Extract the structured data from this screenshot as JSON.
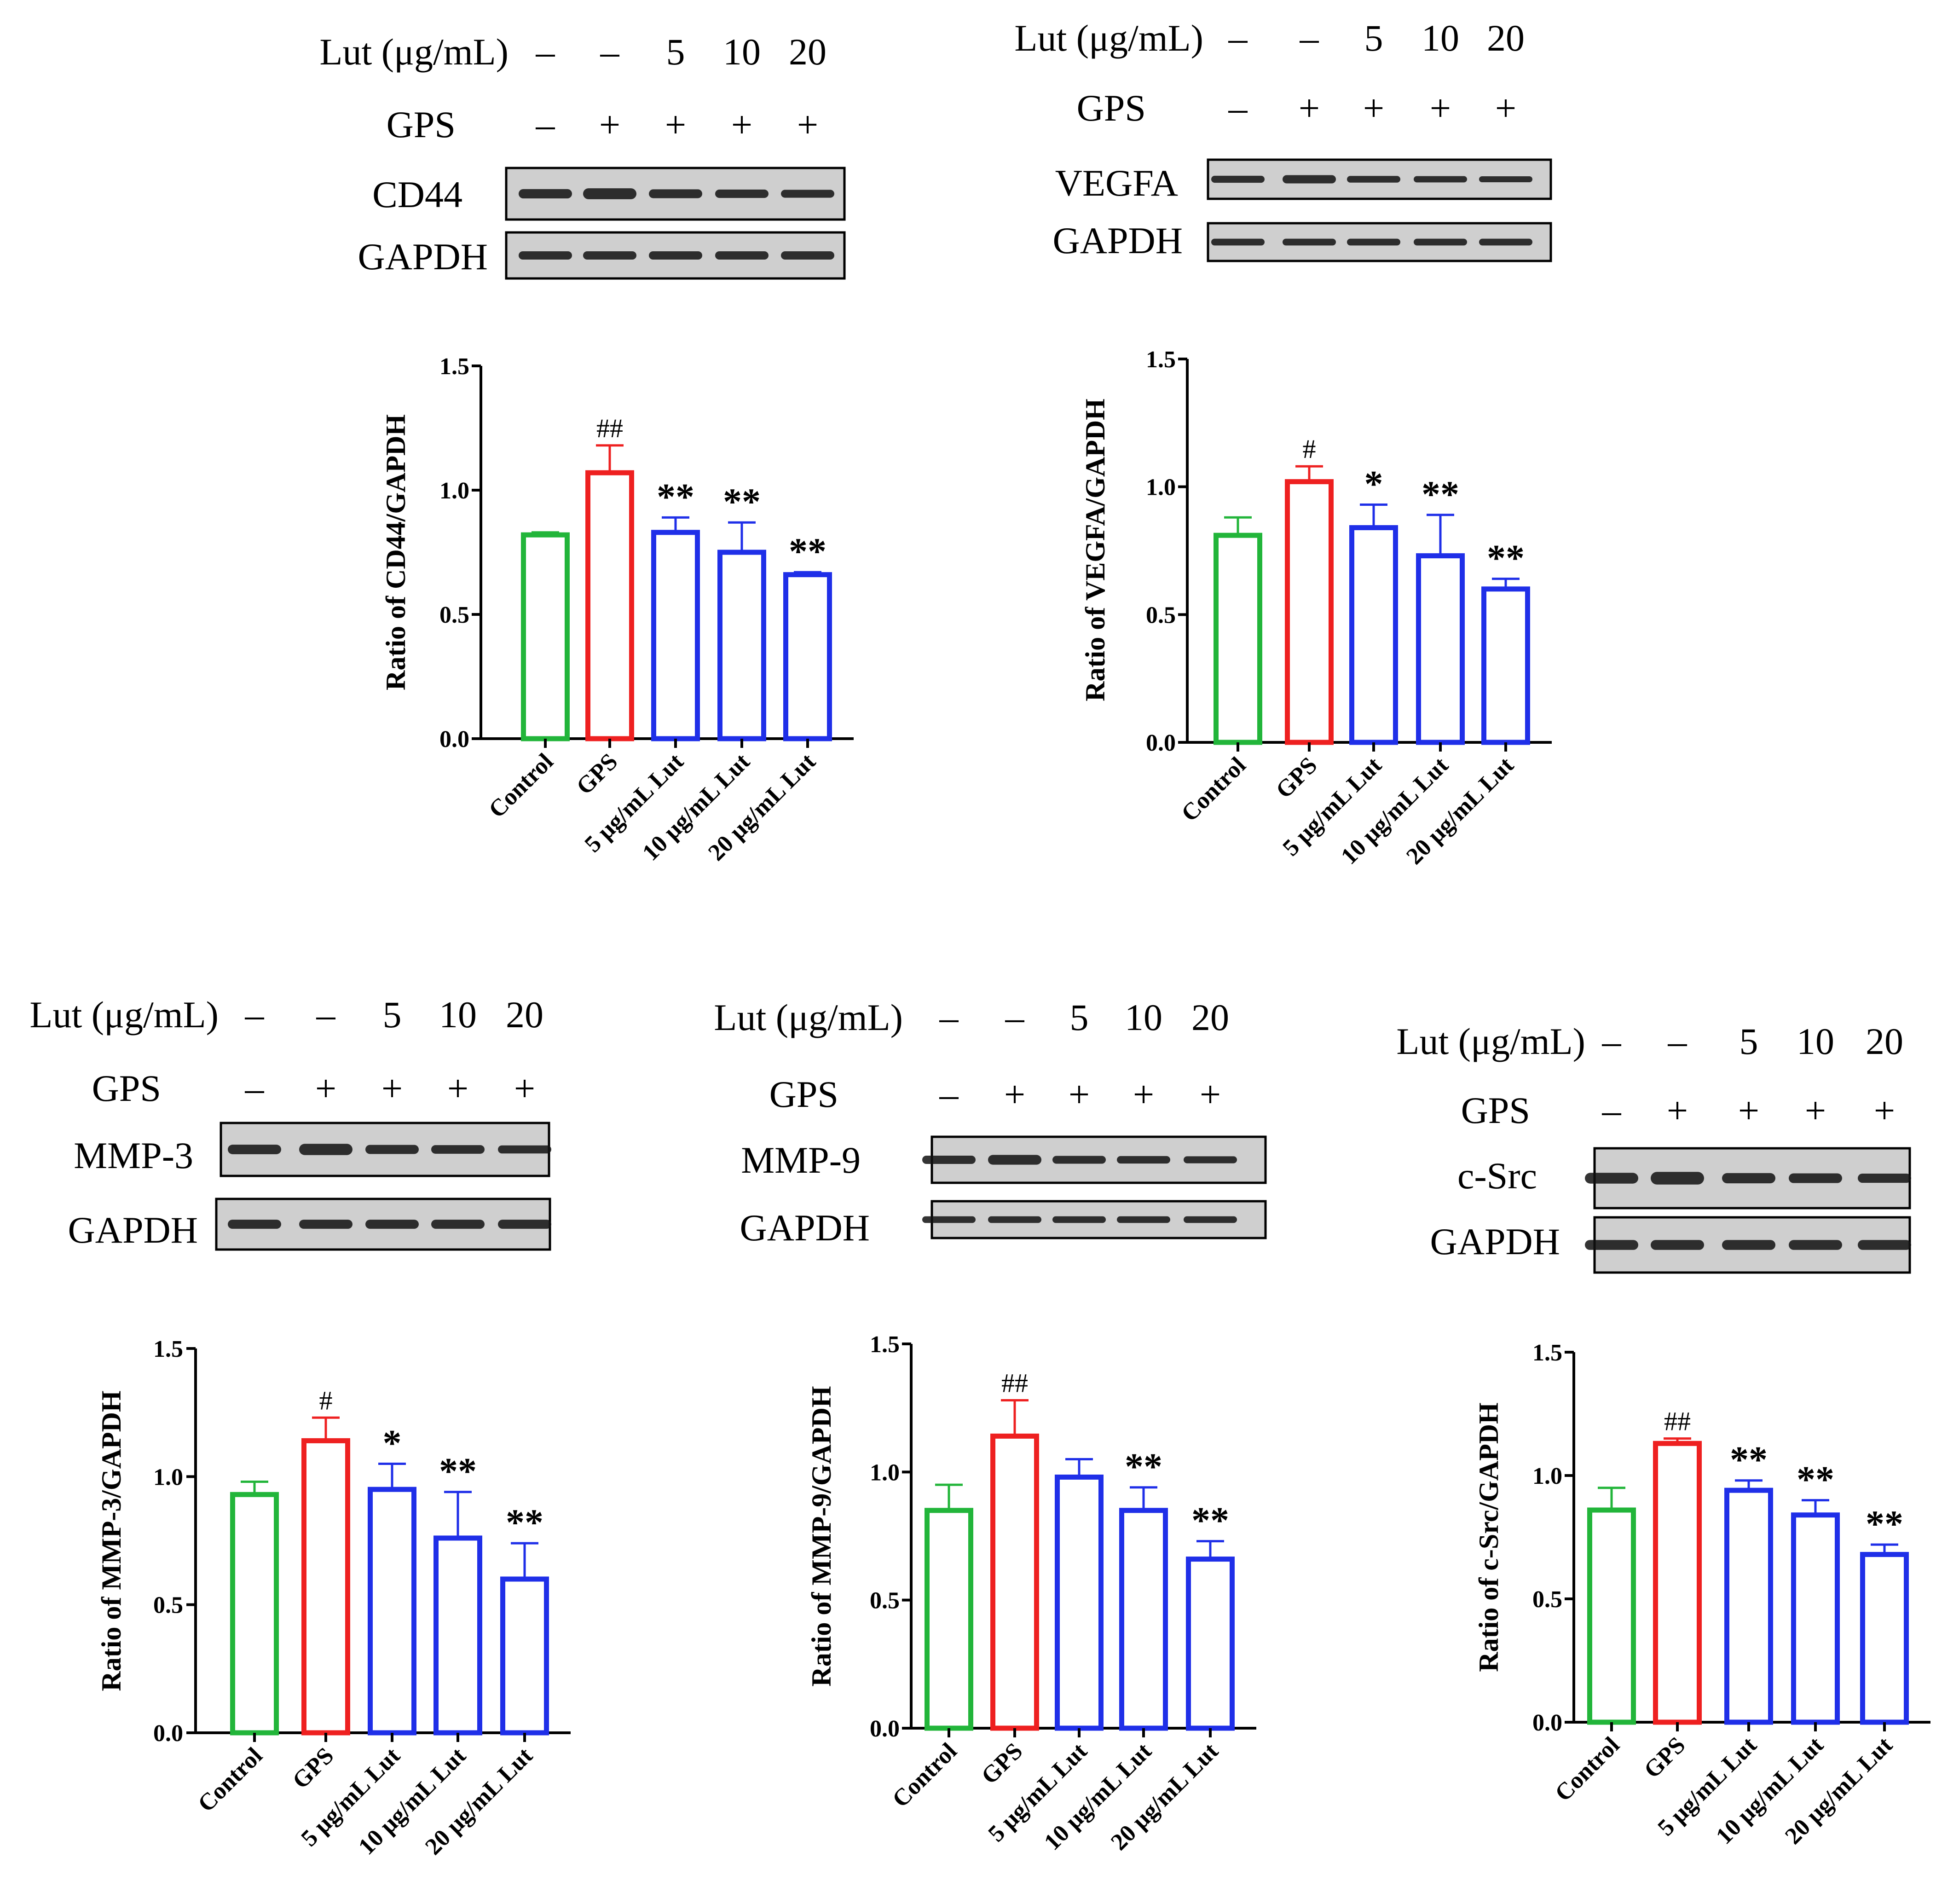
{
  "figure": {
    "label_header_lut": "Lut (μg/mL)",
    "label_header_gps": "GPS",
    "loading_label": "GAPDH",
    "lut_marks": [
      "–",
      "–",
      "5",
      "10",
      "20"
    ],
    "gps_marks": [
      "–",
      "+",
      "+",
      "+",
      "+"
    ],
    "colors": {
      "control": "#22b53a",
      "gps": "#ee2020",
      "lut": "#1f2fe8",
      "axis": "#000000",
      "band": "#111111",
      "blot_bg": "#cfcfcf"
    }
  },
  "panels": [
    {
      "id": "cd44",
      "protein_label": "CD44",
      "y_axis_label": "Ratio of CD44/GAPDH",
      "tick_labels": [
        "0.0",
        "0.5",
        "1.0",
        "1.5"
      ],
      "category_labels": [
        "Control",
        "GPS",
        "5 μg/mL Lut",
        "10 μg/mL Lut",
        "20 μg/mL Lut"
      ],
      "annotations": [
        "",
        "##",
        "**",
        "**",
        "**"
      ]
    },
    {
      "id": "vegfa",
      "protein_label": "VEGFA",
      "y_axis_label": "Ratio of VEGFA/GAPDH",
      "tick_labels": [
        "0.0",
        "0.5",
        "1.0",
        "1.5"
      ],
      "category_labels": [
        "Control",
        "GPS",
        "5 μg/mL Lut",
        "10 μg/mL Lut",
        "20 μg/mL Lut"
      ],
      "annotations": [
        "",
        "#",
        "*",
        "**",
        "**"
      ]
    },
    {
      "id": "mmp3",
      "protein_label": "MMP-3",
      "y_axis_label": "Ratio of MMP-3/GAPDH",
      "tick_labels": [
        "0.0",
        "0.5",
        "1.0",
        "1.5"
      ],
      "category_labels": [
        "Control",
        "GPS",
        "5 μg/mL Lut",
        "10 μg/mL Lut",
        "20 μg/mL Lut"
      ],
      "annotations": [
        "",
        "#",
        "*",
        "**",
        "**"
      ]
    },
    {
      "id": "mmp9",
      "protein_label": "MMP-9",
      "y_axis_label": "Ratio of MMP-9/GAPDH",
      "tick_labels": [
        "0.0",
        "0.5",
        "1.0",
        "1.5"
      ],
      "category_labels": [
        "Control",
        "GPS",
        "5 μg/mL Lut",
        "10 μg/mL Lut",
        "20 μg/mL Lut"
      ],
      "annotations": [
        "",
        "##",
        "",
        "**",
        "**"
      ]
    },
    {
      "id": "csrc",
      "protein_label": "c-Src",
      "y_axis_label": "Ratio of c-Src/GAPDH",
      "tick_labels": [
        "0.0",
        "0.5",
        "1.0",
        "1.5"
      ],
      "category_labels": [
        "Control",
        "GPS",
        "5 μg/mL Lut",
        "10 μg/mL Lut",
        "20 μg/mL Lut"
      ],
      "annotations": [
        "",
        "##",
        "**",
        "**",
        "**"
      ]
    }
  ],
  "chart_data": [
    {
      "type": "bar",
      "title": "CD44",
      "xlabel": "",
      "ylabel": "Ratio of CD44/GAPDH",
      "ylim": [
        0,
        1.5
      ],
      "yticks": [
        0,
        0.5,
        1.0,
        1.5
      ],
      "categories": [
        "Control",
        "GPS",
        "5 μg/mL Lut",
        "10 μg/mL Lut",
        "20 μg/mL Lut"
      ],
      "values": [
        0.82,
        1.07,
        0.83,
        0.75,
        0.66
      ],
      "errors": [
        0.01,
        0.11,
        0.06,
        0.12,
        0.01
      ]
    },
    {
      "type": "bar",
      "title": "VEGFA",
      "xlabel": "",
      "ylabel": "Ratio of VEGFA/GAPDH",
      "ylim": [
        0,
        1.5
      ],
      "yticks": [
        0,
        0.5,
        1.0,
        1.5
      ],
      "categories": [
        "Control",
        "GPS",
        "5 μg/mL Lut",
        "10 μg/mL Lut",
        "20 μg/mL Lut"
      ],
      "values": [
        0.81,
        1.02,
        0.84,
        0.73,
        0.6
      ],
      "errors": [
        0.07,
        0.06,
        0.09,
        0.16,
        0.04
      ]
    },
    {
      "type": "bar",
      "title": "MMP-3",
      "xlabel": "",
      "ylabel": "Ratio of MMP-3/GAPDH",
      "ylim": [
        0,
        1.5
      ],
      "yticks": [
        0,
        0.5,
        1.0,
        1.5
      ],
      "categories": [
        "Control",
        "GPS",
        "5 μg/mL Lut",
        "10 μg/mL Lut",
        "20 μg/mL Lut"
      ],
      "values": [
        0.93,
        1.14,
        0.95,
        0.76,
        0.6
      ],
      "errors": [
        0.05,
        0.09,
        0.1,
        0.18,
        0.14
      ]
    },
    {
      "type": "bar",
      "title": "MMP-9",
      "xlabel": "",
      "ylabel": "Ratio of MMP-9/GAPDH",
      "ylim": [
        0,
        1.5
      ],
      "yticks": [
        0,
        0.5,
        1.0,
        1.5
      ],
      "categories": [
        "Control",
        "GPS",
        "5 μg/mL Lut",
        "10 μg/mL Lut",
        "20 μg/mL Lut"
      ],
      "values": [
        0.85,
        1.14,
        0.98,
        0.85,
        0.66
      ],
      "errors": [
        0.1,
        0.14,
        0.07,
        0.09,
        0.07
      ]
    },
    {
      "type": "bar",
      "title": "c-Src",
      "xlabel": "",
      "ylabel": "Ratio of c-Src/GAPDH",
      "ylim": [
        0,
        1.5
      ],
      "yticks": [
        0,
        0.5,
        1.0,
        1.5
      ],
      "categories": [
        "Control",
        "GPS",
        "5 μg/mL Lut",
        "10 μg/mL Lut",
        "20 μg/mL Lut"
      ],
      "values": [
        0.86,
        1.13,
        0.94,
        0.84,
        0.68
      ],
      "errors": [
        0.09,
        0.02,
        0.04,
        0.06,
        0.04
      ]
    }
  ]
}
